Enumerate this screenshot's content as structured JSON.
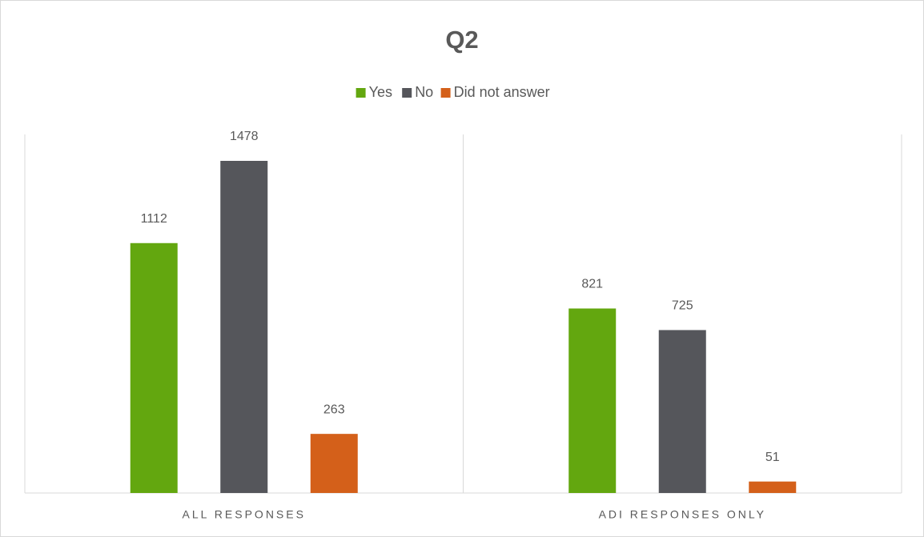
{
  "chart_data": {
    "type": "bar",
    "title": "Q2",
    "categories": [
      "ALL RESPONSES",
      "ADI RESPONSES ONLY"
    ],
    "series": [
      {
        "name": "Yes",
        "color": "#63a70f",
        "values": [
          1112,
          821
        ]
      },
      {
        "name": "No",
        "color": "#55565b",
        "values": [
          1478,
          725
        ]
      },
      {
        "name": "Did not answer",
        "color": "#d4601a",
        "values": [
          263,
          51
        ]
      }
    ],
    "legend": "top"
  }
}
